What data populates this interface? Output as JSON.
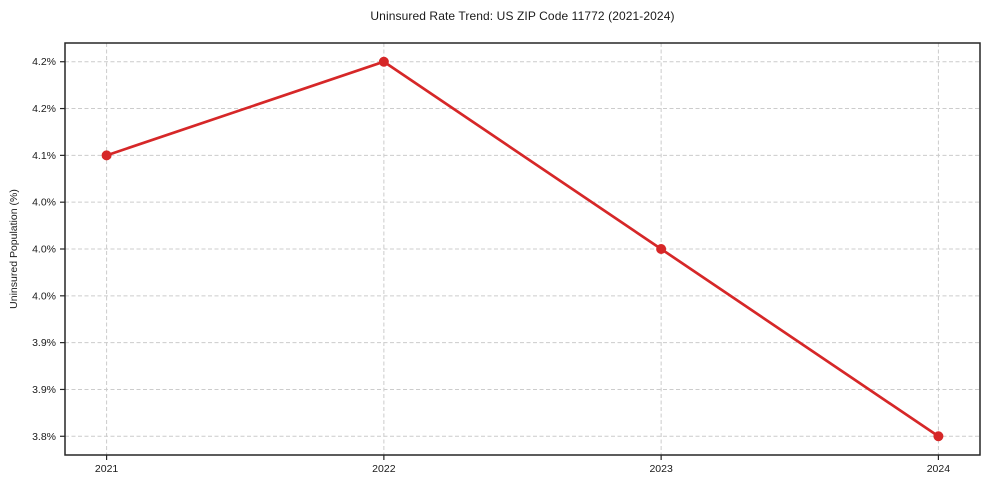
{
  "chart_data": {
    "type": "line",
    "title": "Uninsured Rate Trend: US ZIP Code 11772 (2021-2024)",
    "xlabel": "",
    "ylabel": "Uninsured Population (%)",
    "x": [
      2021,
      2022,
      2023,
      2024
    ],
    "values": [
      4.1,
      4.2,
      4.0,
      3.8
    ],
    "xlim": [
      2020.85,
      2024.15
    ],
    "ylim": [
      3.78,
      4.22
    ],
    "xticks": [
      {
        "value": 2021,
        "label": "2021"
      },
      {
        "value": 2022,
        "label": "2022"
      },
      {
        "value": 2023,
        "label": "2023"
      },
      {
        "value": 2024,
        "label": "2024"
      }
    ],
    "yticks": [
      {
        "value": 3.8,
        "label": "3.8%"
      },
      {
        "value": 3.85,
        "label": "3.9%"
      },
      {
        "value": 3.9,
        "label": "3.9%"
      },
      {
        "value": 3.95,
        "label": "4.0%"
      },
      {
        "value": 4.0,
        "label": "4.0%"
      },
      {
        "value": 4.05,
        "label": "4.0%"
      },
      {
        "value": 4.1,
        "label": "4.1%"
      },
      {
        "value": 4.15,
        "label": "4.2%"
      },
      {
        "value": 4.2,
        "label": "4.2%"
      }
    ],
    "grid": true,
    "grid_style": "dashed",
    "legend": false,
    "marker": "circle",
    "colors": {
      "line": "#d62728",
      "marker": "#d62728",
      "grid": "#cccccc",
      "axis": "#262626",
      "text": "#1a1a1a",
      "background": "#ffffff"
    }
  }
}
